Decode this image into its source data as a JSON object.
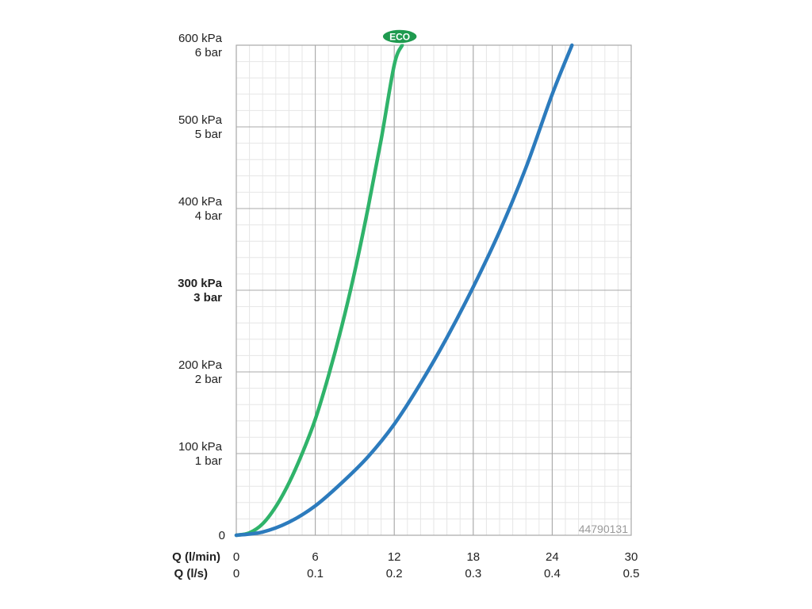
{
  "chart_data": {
    "type": "line",
    "x_axes": [
      {
        "label": "Q (l/min)",
        "ticks": [
          "0",
          "6",
          "12",
          "18",
          "24",
          "30"
        ]
      },
      {
        "label": "Q (l/s)",
        "ticks": [
          "0",
          "0.1",
          "0.2",
          "0.3",
          "0.4",
          "0.5"
        ]
      }
    ],
    "y_ticks": [
      {
        "value": 0,
        "line1": "0",
        "line2": "",
        "bold": false
      },
      {
        "value": 100,
        "line1": "100 kPa",
        "line2": "1 bar",
        "bold": false
      },
      {
        "value": 200,
        "line1": "200 kPa",
        "line2": "2 bar",
        "bold": false
      },
      {
        "value": 300,
        "line1": "300 kPa",
        "line2": "3 bar",
        "bold": true
      },
      {
        "value": 400,
        "line1": "400 kPa",
        "line2": "4 bar",
        "bold": false
      },
      {
        "value": 500,
        "line1": "500 kPa",
        "line2": "5 bar",
        "bold": false
      },
      {
        "value": 600,
        "line1": "600 kPa",
        "line2": "6 bar",
        "bold": false
      }
    ],
    "xlim": [
      0,
      30
    ],
    "ylim": [
      0,
      600
    ],
    "grid": true,
    "series": [
      {
        "name": "ECO",
        "color": "#2fb36a",
        "x": [
          0,
          1,
          2,
          3,
          4,
          5,
          6,
          7,
          8,
          9,
          10,
          11,
          12,
          12.6
        ],
        "y": [
          0,
          3,
          14,
          35,
          64,
          100,
          142,
          195,
          255,
          323,
          400,
          484,
          576,
          600
        ]
      },
      {
        "name": "",
        "color": "#2c7bbd",
        "x": [
          0,
          2,
          4,
          6,
          8,
          10,
          12,
          14,
          16,
          18,
          20,
          22,
          24,
          25.5
        ],
        "y": [
          0,
          4,
          16,
          36,
          64,
          96,
          136,
          186,
          242,
          304,
          372,
          450,
          540,
          600
        ]
      }
    ],
    "annotations": {
      "eco_badge": "ECO",
      "code": "44790131"
    }
  }
}
